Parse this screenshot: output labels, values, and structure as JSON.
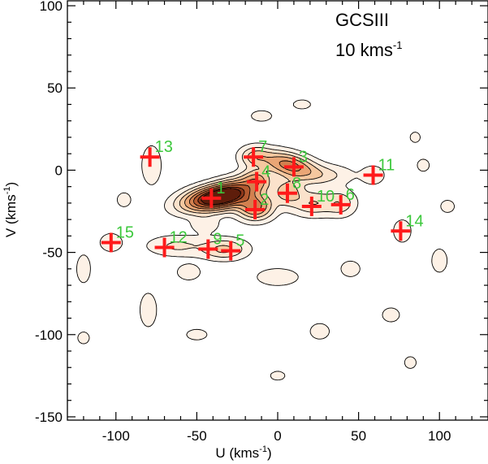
{
  "chart_data": {
    "type": "contour",
    "title_lines": [
      "GCSIII",
      "10  kms"
    ],
    "title_superscript": "-1",
    "xlabel": "U (kms",
    "xlabel_superscript": "-1",
    "xlabel_tail": ")",
    "ylabel": "V (kms",
    "ylabel_superscript": "-1",
    "ylabel_tail": ")",
    "xlim": [
      -130,
      130
    ],
    "ylim": [
      -152,
      103
    ],
    "xticks": [
      -100,
      -50,
      0,
      50,
      100
    ],
    "xtick_labels": [
      "-100",
      "-50",
      "0",
      "50",
      "100"
    ],
    "yticks": [
      100,
      50,
      0,
      -50,
      -100,
      -150
    ],
    "ytick_labels": [
      "100",
      "50",
      "0",
      "-50",
      "-100",
      "-150"
    ],
    "x_minor_step": 10,
    "y_minor_step": 10,
    "peaks": [
      {
        "label": "1",
        "U": -41,
        "V": -17
      },
      {
        "label": "2",
        "U": -14,
        "V": -24
      },
      {
        "label": "3",
        "U": 10,
        "V": 2
      },
      {
        "label": "4",
        "U": -13,
        "V": -7
      },
      {
        "label": "5",
        "U": -29,
        "V": -49
      },
      {
        "label": "6",
        "U": 39,
        "V": -21
      },
      {
        "label": "7",
        "U": -15,
        "V": 8
      },
      {
        "label": "8",
        "U": 6,
        "V": -14
      },
      {
        "label": "9",
        "U": -43,
        "V": -48
      },
      {
        "label": "10",
        "U": 21,
        "V": -22
      },
      {
        "label": "11",
        "U": 59,
        "V": -3
      },
      {
        "label": "12",
        "U": -70,
        "V": -47
      },
      {
        "label": "13",
        "U": -79,
        "V": 8
      },
      {
        "label": "14",
        "U": 76,
        "V": -37
      },
      {
        "label": "15",
        "U": -103,
        "V": -44
      }
    ],
    "density_blobs": [
      {
        "U": -40,
        "V": -17,
        "su": 12,
        "sv": 4.5,
        "rot": 0.18,
        "amp": 1.0
      },
      {
        "U": -28,
        "V": -14,
        "su": 10,
        "sv": 5,
        "rot": 0.3,
        "amp": 0.55
      },
      {
        "U": -14,
        "V": -22,
        "su": 7,
        "sv": 5,
        "rot": 0.0,
        "amp": 0.55
      },
      {
        "U": -13,
        "V": -6,
        "su": 6,
        "sv": 4.5,
        "rot": 0.0,
        "amp": 0.35
      },
      {
        "U": 7,
        "V": 3,
        "su": 11,
        "sv": 4.5,
        "rot": -0.25,
        "amp": 0.55
      },
      {
        "U": -14,
        "V": 8,
        "su": 6,
        "sv": 4,
        "rot": 0.0,
        "amp": 0.25
      },
      {
        "U": 6,
        "V": -13,
        "su": 6,
        "sv": 5,
        "rot": 0.0,
        "amp": 0.3
      },
      {
        "U": 22,
        "V": -20,
        "su": 9,
        "sv": 5,
        "rot": 0.0,
        "amp": 0.22
      },
      {
        "U": 39,
        "V": -20,
        "su": 6,
        "sv": 5,
        "rot": 0.0,
        "amp": 0.18
      },
      {
        "U": 28,
        "V": -3,
        "su": 12,
        "sv": 4,
        "rot": 0.0,
        "amp": 0.14
      },
      {
        "U": 59,
        "V": -3,
        "su": 5,
        "sv": 4,
        "rot": 0.0,
        "amp": 0.1
      },
      {
        "U": -33,
        "V": -48,
        "su": 9,
        "sv": 4,
        "rot": 0.0,
        "amp": 0.25
      },
      {
        "U": -62,
        "V": -46,
        "su": 12,
        "sv": 4,
        "rot": 0.0,
        "amp": 0.14
      },
      {
        "U": -103,
        "V": -44,
        "su": 5,
        "sv": 4,
        "rot": 0.0,
        "amp": 0.1
      },
      {
        "U": -78,
        "V": 3,
        "su": 4,
        "sv": 8,
        "rot": 0.0,
        "amp": 0.12
      },
      {
        "U": 77,
        "V": -37,
        "su": 4,
        "sv": 5,
        "rot": 0.0,
        "amp": 0.1
      },
      {
        "U": -55,
        "V": -62,
        "su": 6,
        "sv": 4,
        "rot": 0.0,
        "amp": 0.08
      },
      {
        "U": 0,
        "V": -65,
        "su": 10,
        "sv": 4,
        "rot": 0.0,
        "amp": 0.09
      },
      {
        "U": 45,
        "V": -60,
        "su": 5,
        "sv": 4,
        "rot": 0.0,
        "amp": 0.08
      },
      {
        "U": -45,
        "V": -33,
        "su": 6,
        "sv": 3.5,
        "rot": 0.0,
        "amp": 0.1
      },
      {
        "U": -10,
        "V": 33,
        "su": 6,
        "sv": 3,
        "rot": 0.0,
        "amp": 0.07
      },
      {
        "U": -80,
        "V": -85,
        "su": 4,
        "sv": 8,
        "rot": 0.0,
        "amp": 0.09
      },
      {
        "U": 26,
        "V": -98,
        "su": 5,
        "sv": 4,
        "rot": 0.0,
        "amp": 0.08
      },
      {
        "U": 100,
        "V": -55,
        "su": 4,
        "sv": 6,
        "rot": 0.0,
        "amp": 0.08
      },
      {
        "U": -50,
        "V": -100,
        "su": 6,
        "sv": 3,
        "rot": 0.0,
        "amp": 0.07
      },
      {
        "U": 70,
        "V": -88,
        "su": 5,
        "sv": 4,
        "rot": 0.0,
        "amp": 0.07
      },
      {
        "U": 105,
        "V": -22,
        "su": 4,
        "sv": 3.5,
        "rot": 0.0,
        "amp": 0.07
      },
      {
        "U": 90,
        "V": 3,
        "su": 3.5,
        "sv": 3.5,
        "rot": 0.0,
        "amp": 0.07
      },
      {
        "U": -120,
        "V": -60,
        "su": 4,
        "sv": 8,
        "rot": 0.0,
        "amp": 0.07
      },
      {
        "U": -95,
        "V": -18,
        "su": 4,
        "sv": 4,
        "rot": 0.0,
        "amp": 0.07
      },
      {
        "U": 15,
        "V": 40,
        "su": 6,
        "sv": 3,
        "rot": 0.0,
        "amp": 0.06
      },
      {
        "U": 85,
        "V": 20,
        "su": 3.5,
        "sv": 3.5,
        "rot": 0.0,
        "amp": 0.06
      },
      {
        "U": 0,
        "V": -125,
        "su": 5,
        "sv": 3,
        "rot": 0.0,
        "amp": 0.06
      },
      {
        "U": -120,
        "V": -102,
        "su": 4,
        "sv": 4,
        "rot": 0.0,
        "amp": 0.06
      },
      {
        "U": 82,
        "V": -117,
        "su": 4,
        "sv": 4,
        "rot": 0.0,
        "amp": 0.06
      }
    ],
    "contour_levels": [
      0.04,
      0.12,
      0.22,
      0.34,
      0.48,
      0.62,
      0.78,
      0.9
    ],
    "fill_colors": [
      "#fdf1e6",
      "#fbe2cb",
      "#f5c79f",
      "#eaa676",
      "#d2804f",
      "#b45a30",
      "#8b3619",
      "#5e1d0b"
    ]
  }
}
